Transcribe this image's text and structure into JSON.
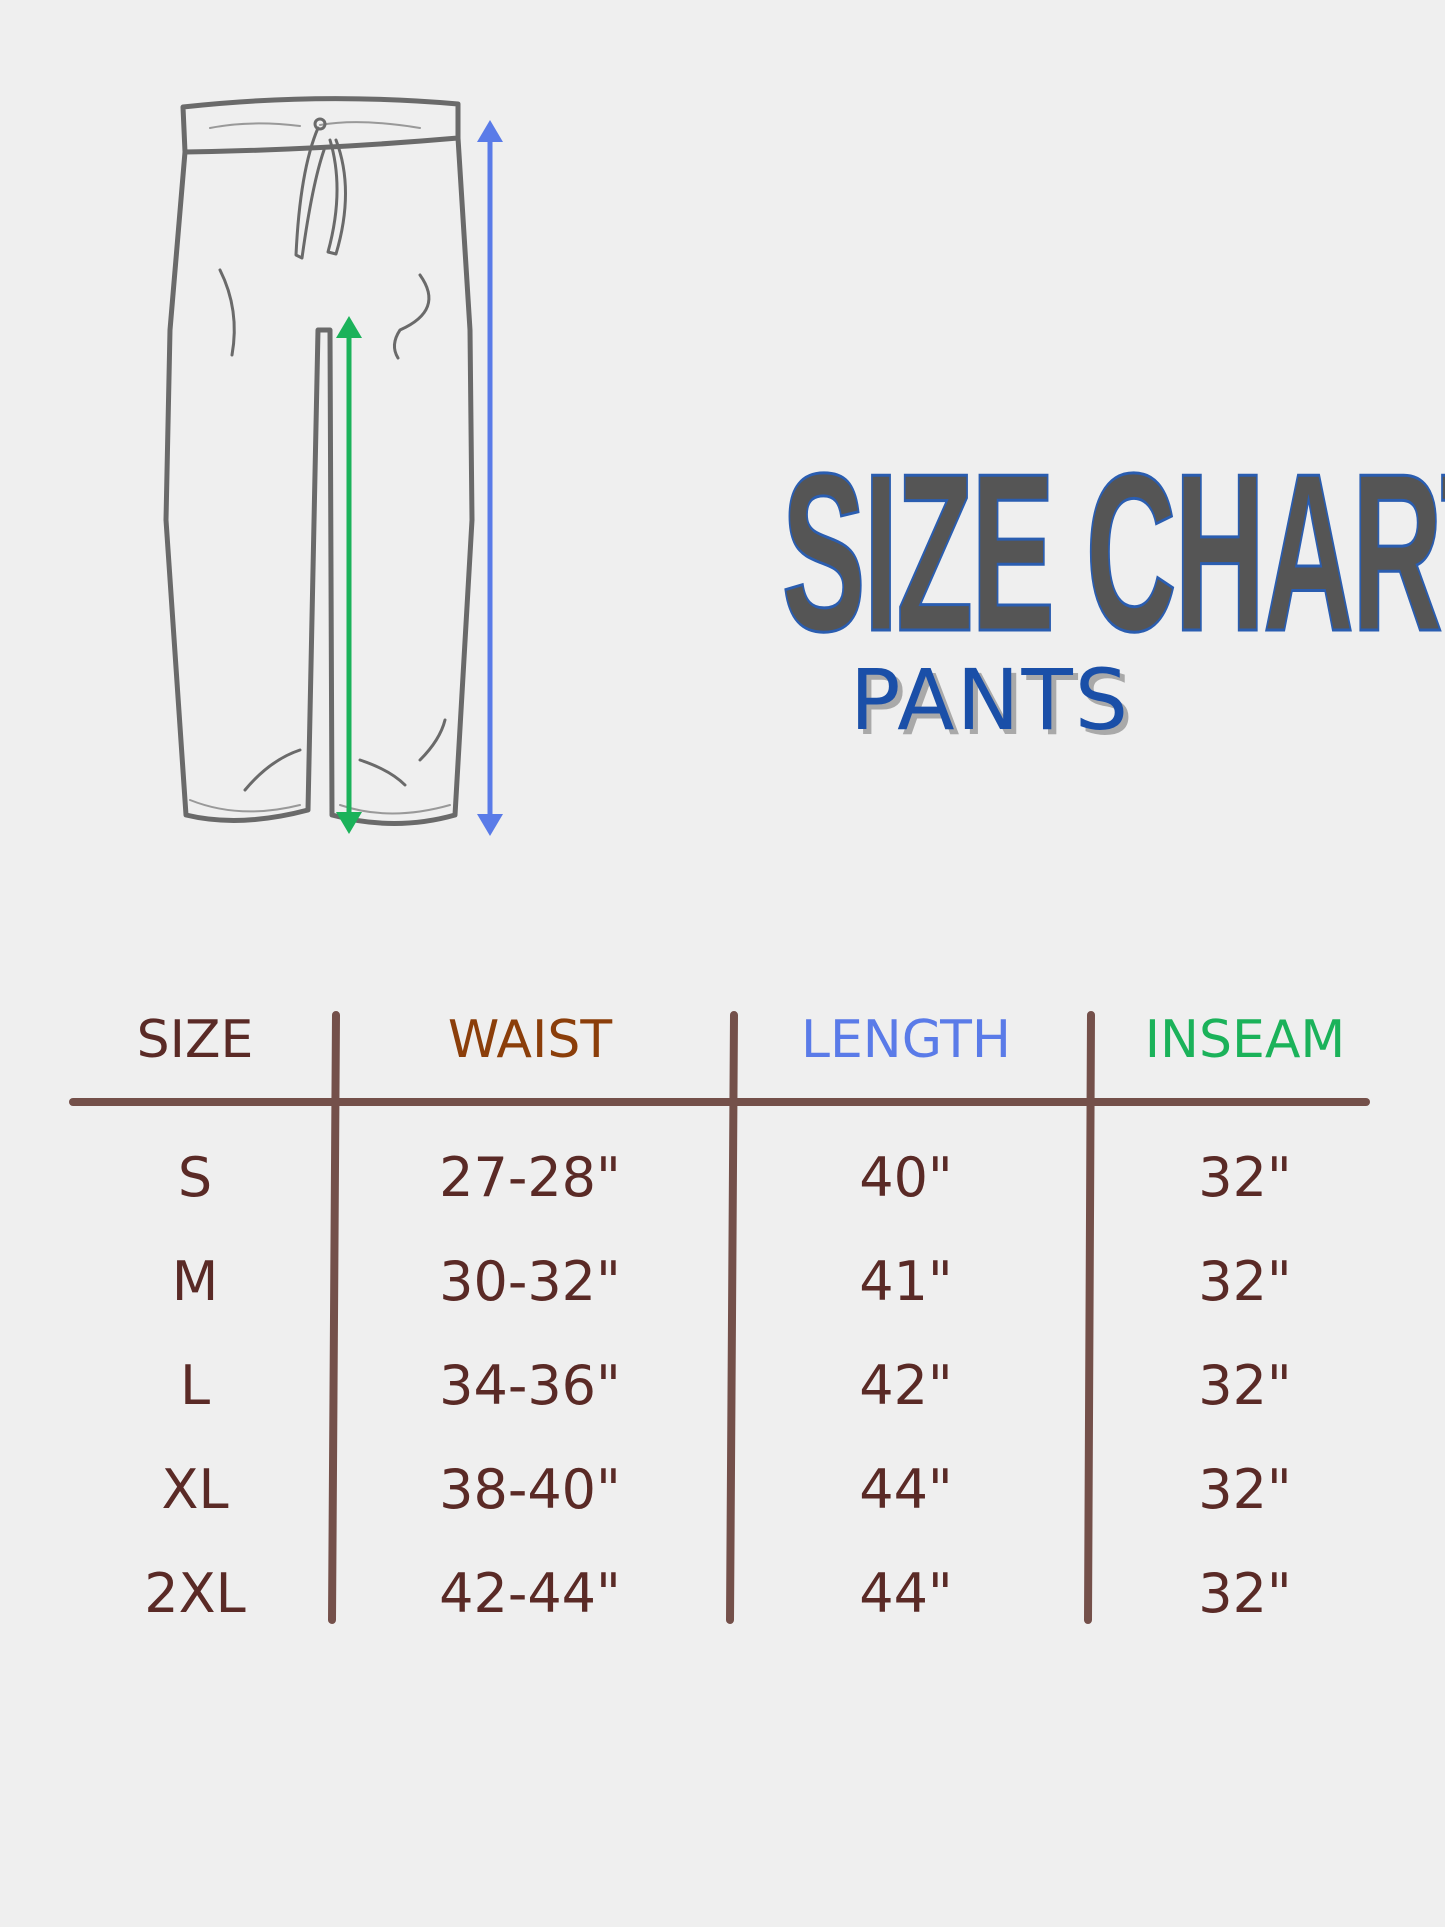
{
  "title": "SIZE CHART",
  "subtitle": "PANTS",
  "colors": {
    "background": "#efefef",
    "title_fill": "#555555",
    "title_outline": "#2a5db0",
    "subtitle": "#1a4fa8",
    "table_text": "#5a2a26",
    "table_lines": "#74504a",
    "waist": "#8b3e0a",
    "length": "#5a7be8",
    "inseam": "#1bb25a"
  },
  "illustration": {
    "icon": "pants-outline-icon",
    "length_arrow_color": "#5a7be8",
    "inseam_arrow_color": "#1bb25a"
  },
  "table": {
    "headers": [
      {
        "label": "SIZE",
        "color": "#5a2a26"
      },
      {
        "label": "WAIST",
        "color": "#8b3e0a"
      },
      {
        "label": "LENGTH",
        "color": "#5a7be8"
      },
      {
        "label": "INSEAM",
        "color": "#1bb25a"
      }
    ],
    "rows": [
      [
        "S",
        "27-28\"",
        "40\"",
        "32\""
      ],
      [
        "M",
        "30-32\"",
        "41\"",
        "32\""
      ],
      [
        "L",
        "34-36\"",
        "42\"",
        "32\""
      ],
      [
        "XL",
        "38-40\"",
        "44\"",
        "32\""
      ],
      [
        "2XL",
        "42-44\"",
        "44\"",
        "32\""
      ]
    ]
  }
}
